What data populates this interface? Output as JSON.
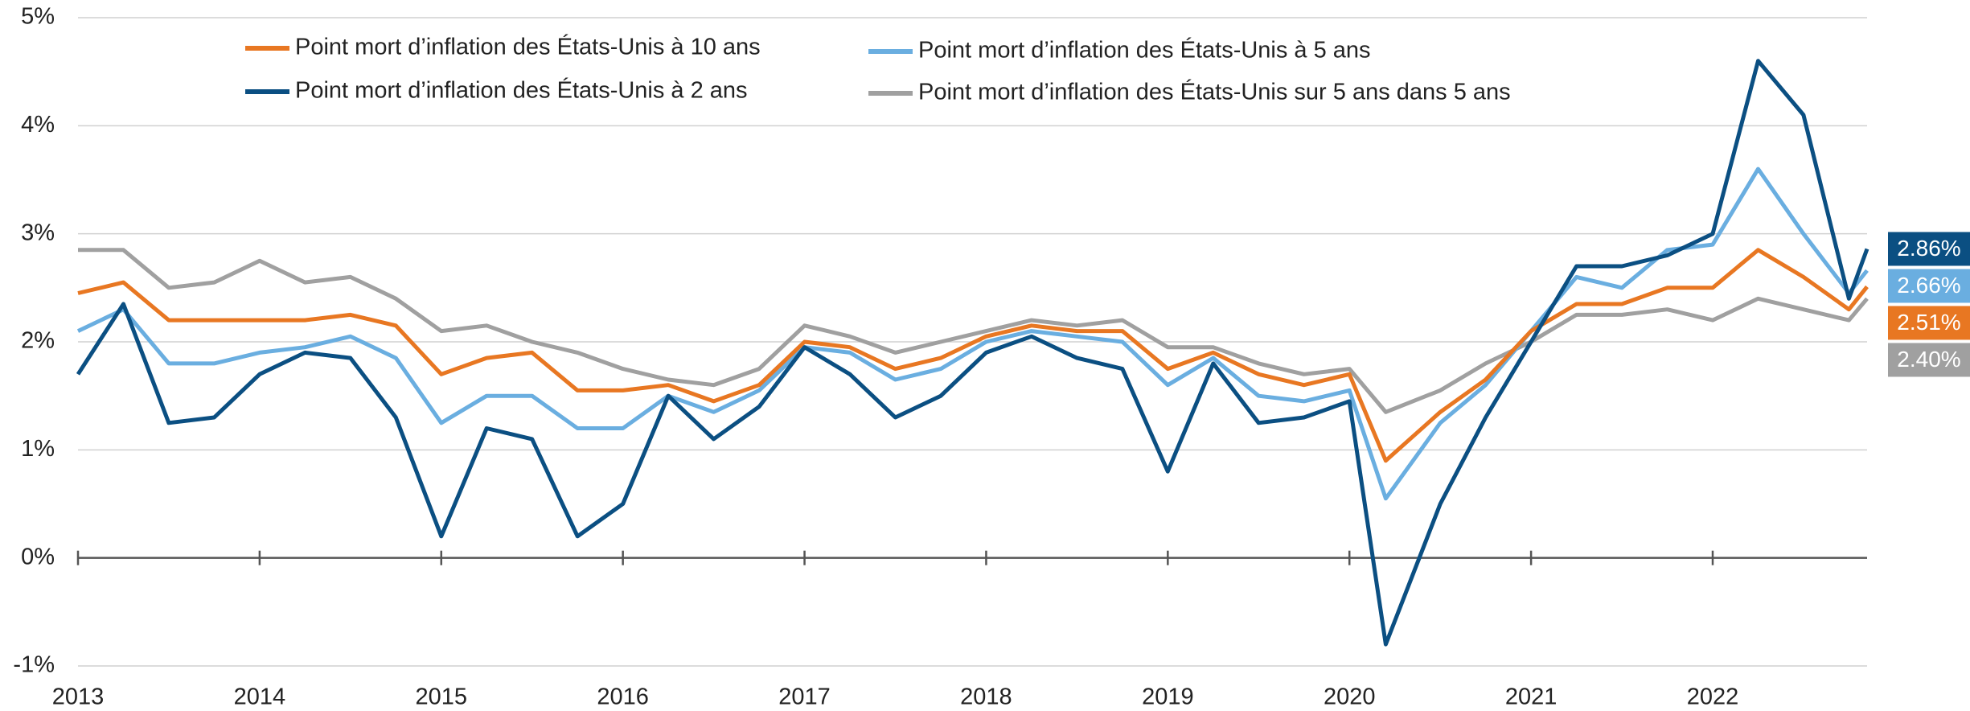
{
  "chart_data": {
    "type": "line",
    "x": [
      2013.0,
      2013.25,
      2013.5,
      2013.75,
      2014.0,
      2014.25,
      2014.5,
      2014.75,
      2015.0,
      2015.25,
      2015.5,
      2015.75,
      2016.0,
      2016.25,
      2016.5,
      2016.75,
      2017.0,
      2017.25,
      2017.5,
      2017.75,
      2018.0,
      2018.25,
      2018.5,
      2018.75,
      2019.0,
      2019.25,
      2019.5,
      2019.75,
      2020.0,
      2020.2,
      2020.5,
      2020.75,
      2021.0,
      2021.25,
      2021.5,
      2021.75,
      2022.0,
      2022.25,
      2022.5,
      2022.75,
      2022.85
    ],
    "series": [
      {
        "name": "Point mort d’inflation des États-Unis à 10 ans",
        "color": "#e87722",
        "end_label": "2.51%",
        "values": [
          2.45,
          2.55,
          2.2,
          2.2,
          2.2,
          2.2,
          2.25,
          2.15,
          1.7,
          1.85,
          1.9,
          1.55,
          1.55,
          1.6,
          1.45,
          1.6,
          2.0,
          1.95,
          1.75,
          1.85,
          2.05,
          2.15,
          2.1,
          2.1,
          1.75,
          1.9,
          1.7,
          1.6,
          1.7,
          0.9,
          1.35,
          1.65,
          2.1,
          2.35,
          2.35,
          2.5,
          2.5,
          2.85,
          2.6,
          2.3,
          2.51
        ]
      },
      {
        "name": "Point mort d’inflation des États-Unis à 5 ans",
        "color": "#6aaee0",
        "end_label": "2.66%",
        "values": [
          2.1,
          2.3,
          1.8,
          1.8,
          1.9,
          1.95,
          2.05,
          1.85,
          1.25,
          1.5,
          1.5,
          1.2,
          1.2,
          1.5,
          1.35,
          1.55,
          1.95,
          1.9,
          1.65,
          1.75,
          2.0,
          2.1,
          2.05,
          2.0,
          1.6,
          1.85,
          1.5,
          1.45,
          1.55,
          0.55,
          1.25,
          1.6,
          2.1,
          2.6,
          2.5,
          2.85,
          2.9,
          3.6,
          3.0,
          2.45,
          2.66
        ]
      },
      {
        "name": "Point mort d’inflation des États-Unis à 2 ans",
        "color": "#0b4f82",
        "end_label": "2.86%",
        "values": [
          1.7,
          2.35,
          1.25,
          1.3,
          1.7,
          1.9,
          1.85,
          1.3,
          0.2,
          1.2,
          1.1,
          0.2,
          0.5,
          1.5,
          1.1,
          1.4,
          1.95,
          1.7,
          1.3,
          1.5,
          1.9,
          2.05,
          1.85,
          1.75,
          0.8,
          1.8,
          1.25,
          1.3,
          1.45,
          -0.8,
          0.5,
          1.3,
          2.0,
          2.7,
          2.7,
          2.8,
          3.0,
          4.6,
          4.1,
          2.4,
          2.86
        ]
      },
      {
        "name": "Point mort d’inflation des États-Unis sur 5 ans dans 5 ans",
        "color": "#a0a0a0",
        "end_label": "2.40%",
        "values": [
          2.85,
          2.85,
          2.5,
          2.55,
          2.75,
          2.55,
          2.6,
          2.4,
          2.1,
          2.15,
          2.0,
          1.9,
          1.75,
          1.65,
          1.6,
          1.75,
          2.15,
          2.05,
          1.9,
          2.0,
          2.1,
          2.2,
          2.15,
          2.2,
          1.95,
          1.95,
          1.8,
          1.7,
          1.75,
          1.35,
          1.55,
          1.8,
          2.0,
          2.25,
          2.25,
          2.3,
          2.2,
          2.4,
          2.3,
          2.2,
          2.4
        ]
      }
    ],
    "xlim": [
      2013,
      2022.85
    ],
    "xticks": [
      2013,
      2014,
      2015,
      2016,
      2017,
      2018,
      2019,
      2020,
      2021,
      2022
    ],
    "ylim": [
      -1,
      5
    ],
    "yticks": [
      {
        "value": -1,
        "label": "-1%"
      },
      {
        "value": 0,
        "label": "0%"
      },
      {
        "value": 1,
        "label": "1%"
      },
      {
        "value": 2,
        "label": "2%"
      },
      {
        "value": 3,
        "label": "3%"
      },
      {
        "value": 4,
        "label": "4%"
      },
      {
        "value": 5,
        "label": "5%"
      }
    ],
    "grid": true
  }
}
